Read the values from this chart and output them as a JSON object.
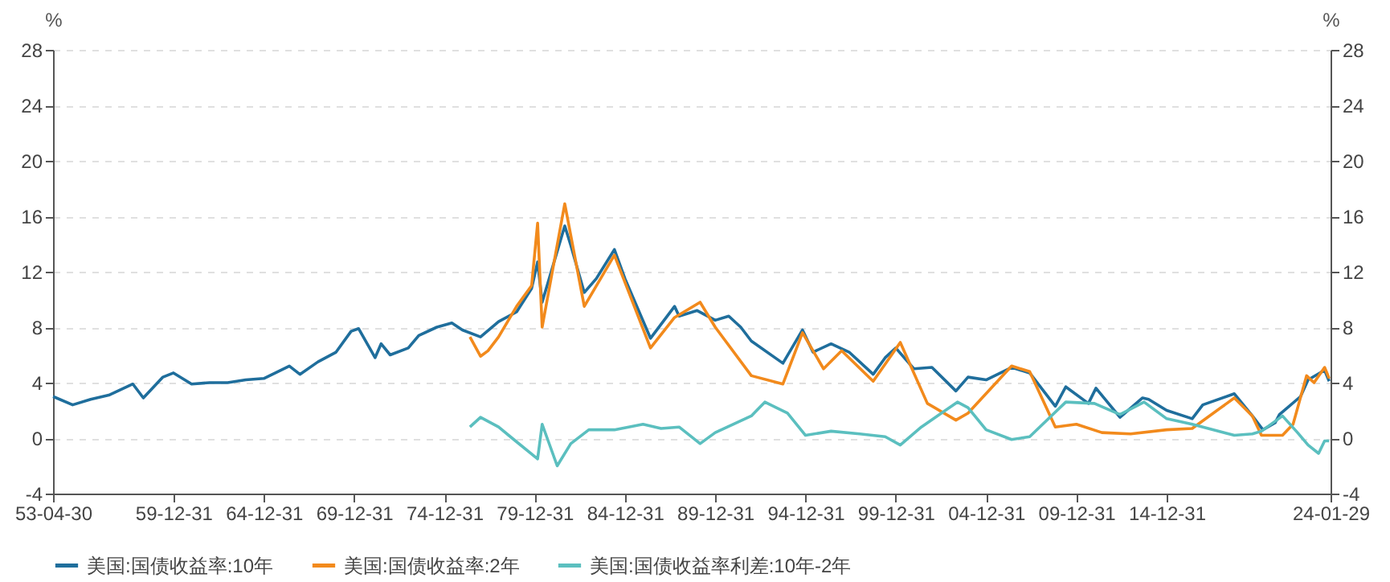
{
  "chart_data": {
    "type": "line",
    "ylabel": "%",
    "y2label": "%",
    "legend": "bottom",
    "grid": "y",
    "line_style": "solid",
    "xlim": [
      "1953-04-30",
      "2024-01-29"
    ],
    "xticks": [
      {
        "value": "1953-04-30",
        "label": "53-04-30"
      },
      {
        "value": "1959-12-31",
        "label": "59-12-31"
      },
      {
        "value": "1964-12-31",
        "label": "64-12-31"
      },
      {
        "value": "1969-12-31",
        "label": "69-12-31"
      },
      {
        "value": "1974-12-31",
        "label": "74-12-31"
      },
      {
        "value": "1979-12-31",
        "label": "79-12-31"
      },
      {
        "value": "1984-12-31",
        "label": "84-12-31"
      },
      {
        "value": "1989-12-31",
        "label": "89-12-31"
      },
      {
        "value": "1994-12-31",
        "label": "94-12-31"
      },
      {
        "value": "1999-12-31",
        "label": "99-12-31"
      },
      {
        "value": "2004-12-31",
        "label": "04-12-31"
      },
      {
        "value": "2009-12-31",
        "label": "09-12-31"
      },
      {
        "value": "2014-12-31",
        "label": "14-12-31"
      },
      {
        "value": "2024-01-29",
        "label": "24-01-29"
      }
    ],
    "ylim": [
      -4,
      28
    ],
    "yticks": [
      -4,
      0,
      4,
      8,
      12,
      16,
      20,
      24,
      28
    ],
    "y2lim": [
      -4,
      28
    ],
    "y2ticks": [
      -4,
      0,
      4,
      8,
      12,
      16,
      20,
      24,
      28
    ],
    "series": [
      {
        "name": "美国:国债收益率:10年",
        "color": "#1f6e9c",
        "x": [
          "1953-05",
          "1954-06",
          "1955-06",
          "1956-06",
          "1957-10",
          "1958-05",
          "1959-06",
          "1960-01",
          "1961-01",
          "1962-01",
          "1963-01",
          "1964-01",
          "1965-01",
          "1966-06",
          "1967-01",
          "1968-01",
          "1969-01",
          "1969-11",
          "1970-04",
          "1971-03",
          "1971-07",
          "1972-01",
          "1973-01",
          "1973-08",
          "1974-08",
          "1975-06",
          "1976-01",
          "1977-01",
          "1978-01",
          "1979-01",
          "1979-11",
          "1980-03",
          "1980-06",
          "1981-09",
          "1982-01",
          "1982-10",
          "1983-06",
          "1984-06",
          "1985-01",
          "1986-06",
          "1987-10",
          "1988-01",
          "1989-01",
          "1990-01",
          "1990-10",
          "1991-06",
          "1992-01",
          "1993-10",
          "1994-11",
          "1995-06",
          "1996-06",
          "1997-06",
          "1998-10",
          "1999-06",
          "2000-01",
          "2001-01",
          "2002-01",
          "2003-05",
          "2004-01",
          "2005-01",
          "2006-06",
          "2007-06",
          "2008-11",
          "2009-06",
          "2010-09",
          "2011-02",
          "2012-06",
          "2013-09",
          "2014-01",
          "2015-01",
          "2016-06",
          "2017-01",
          "2018-10",
          "2019-10",
          "2020-05",
          "2021-01",
          "2021-04",
          "2022-06",
          "2022-11",
          "2023-10",
          "2024-01"
        ],
        "values": [
          3.0,
          2.4,
          2.8,
          3.1,
          3.9,
          2.9,
          4.4,
          4.7,
          3.9,
          4.0,
          4.0,
          4.2,
          4.3,
          5.2,
          4.6,
          5.5,
          6.2,
          7.7,
          7.9,
          5.8,
          6.8,
          6.0,
          6.5,
          7.4,
          8.0,
          8.3,
          7.8,
          7.3,
          8.4,
          9.1,
          10.8,
          12.7,
          9.8,
          15.3,
          13.9,
          10.5,
          11.5,
          13.6,
          11.5,
          7.2,
          9.5,
          8.8,
          9.2,
          8.5,
          8.8,
          8.0,
          7.0,
          5.4,
          7.8,
          6.2,
          6.8,
          6.2,
          4.6,
          5.8,
          6.5,
          5.0,
          5.1,
          3.4,
          4.4,
          4.2,
          5.1,
          4.7,
          2.3,
          3.7,
          2.5,
          3.6,
          1.5,
          2.9,
          2.8,
          2.0,
          1.4,
          2.4,
          3.2,
          1.6,
          0.6,
          1.1,
          1.7,
          3.0,
          4.2,
          4.9,
          4.1
        ]
      },
      {
        "name": "美国:国债收益率:2年",
        "color": "#f28a1c",
        "x": [
          "1976-06",
          "1977-01",
          "1977-06",
          "1978-01",
          "1979-01",
          "1979-11",
          "1980-03",
          "1980-06",
          "1981-09",
          "1982-10",
          "1984-06",
          "1986-06",
          "1987-10",
          "1989-03",
          "1990-01",
          "1992-01",
          "1993-10",
          "1994-11",
          "1996-01",
          "1997-01",
          "1998-10",
          "2000-04",
          "2001-10",
          "2003-05",
          "2004-01",
          "2006-06",
          "2007-06",
          "2008-11",
          "2010-01",
          "2011-06",
          "2013-01",
          "2015-01",
          "2016-06",
          "2018-10",
          "2019-10",
          "2020-04",
          "2021-06",
          "2022-01",
          "2022-10",
          "2023-03",
          "2023-10",
          "2024-01"
        ],
        "values": [
          7.3,
          5.9,
          6.3,
          7.3,
          9.5,
          11.0,
          15.5,
          8.0,
          16.9,
          9.5,
          13.2,
          6.5,
          8.7,
          9.8,
          8.0,
          4.5,
          3.9,
          7.6,
          5.0,
          6.3,
          4.1,
          6.9,
          2.5,
          1.3,
          1.8,
          5.2,
          4.8,
          0.8,
          1.0,
          0.4,
          0.3,
          0.6,
          0.7,
          2.9,
          1.6,
          0.2,
          0.2,
          1.0,
          4.5,
          4.0,
          5.1,
          4.3
        ]
      },
      {
        "name": "美国:国债收益率利差:10年-2年",
        "color": "#5bbfbf",
        "x": [
          "1976-06",
          "1977-01",
          "1978-01",
          "1978-10",
          "1980-03",
          "1980-06",
          "1981-04",
          "1982-01",
          "1983-01",
          "1984-06",
          "1986-01",
          "1987-01",
          "1988-01",
          "1989-03",
          "1990-01",
          "1992-01",
          "1992-10",
          "1994-01",
          "1995-01",
          "1996-06",
          "1998-01",
          "1999-06",
          "2000-04",
          "2001-06",
          "2003-06",
          "2004-01",
          "2005-01",
          "2006-06",
          "2007-06",
          "2009-06",
          "2011-01",
          "2012-06",
          "2013-10",
          "2015-01",
          "2016-06",
          "2018-10",
          "2019-10",
          "2020-04",
          "2021-06",
          "2022-04",
          "2022-11",
          "2023-06",
          "2023-10",
          "2024-01"
        ],
        "values": [
          0.8,
          1.5,
          0.8,
          0.0,
          -1.5,
          1.0,
          -2.0,
          -0.4,
          0.6,
          0.6,
          1.0,
          0.7,
          0.8,
          -0.4,
          0.4,
          1.6,
          2.6,
          1.8,
          0.2,
          0.5,
          0.3,
          0.1,
          -0.5,
          0.8,
          2.6,
          2.2,
          0.6,
          -0.1,
          0.1,
          2.6,
          2.5,
          1.7,
          2.6,
          1.4,
          1.0,
          0.2,
          0.3,
          0.5,
          1.6,
          0.4,
          -0.5,
          -1.1,
          -0.2,
          -0.2
        ]
      }
    ]
  }
}
